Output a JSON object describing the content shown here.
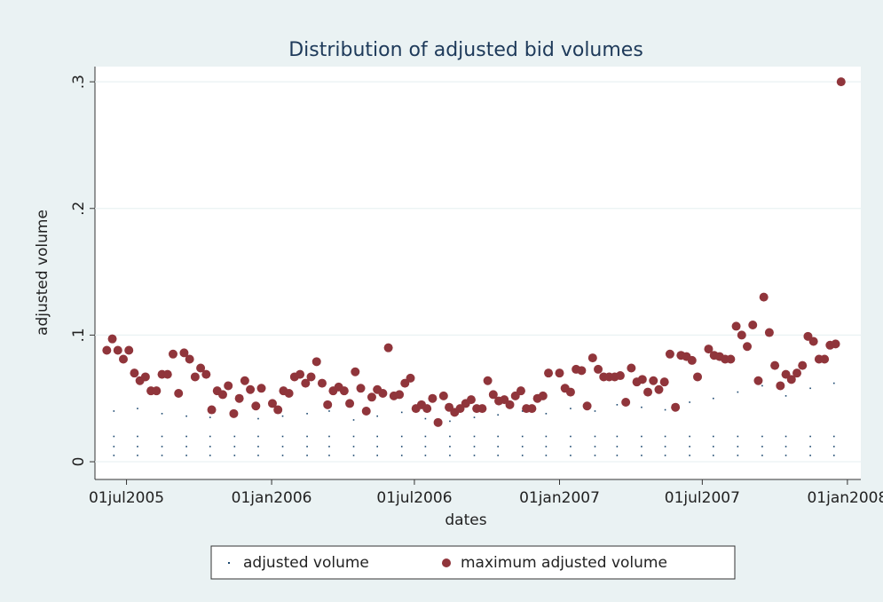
{
  "chart_data": {
    "type": "scatter",
    "title": "Distribution of adjusted bid volumes",
    "x_label": "dates",
    "y_label": "adjusted volume",
    "xlim": [
      "2005-05-22",
      "2008-01-18"
    ],
    "xticks": [
      {
        "value": "2005-07-01",
        "label": "01jul2005"
      },
      {
        "value": "2006-01-01",
        "label": "01jan2006"
      },
      {
        "value": "2006-07-01",
        "label": "01jul2006"
      },
      {
        "value": "2007-01-01",
        "label": "01jan2007"
      },
      {
        "value": "2007-07-01",
        "label": "01jul2007"
      },
      {
        "value": "2008-01-01",
        "label": "01jan2008"
      }
    ],
    "ylim": [
      -0.014,
      0.312
    ],
    "yticks": [
      0,
      {
        "value": 0.1,
        "label": ".1"
      },
      {
        "value": 0.2,
        "label": ".2"
      },
      {
        "value": 0.3,
        "label": ".3"
      }
    ],
    "grid": true,
    "legend": "bottom",
    "series": [
      {
        "name": "adjusted volume",
        "color": "#1a476f",
        "x": [
          "2005-06-15",
          "2005-06-15",
          "2005-06-15",
          "2005-06-15",
          "2005-07-15",
          "2005-07-15",
          "2005-07-15",
          "2005-07-15",
          "2005-08-15",
          "2005-08-15",
          "2005-08-15",
          "2005-08-15",
          "2005-09-15",
          "2005-09-15",
          "2005-09-15",
          "2005-09-15",
          "2005-10-15",
          "2005-10-15",
          "2005-10-15",
          "2005-10-15",
          "2005-11-15",
          "2005-11-15",
          "2005-11-15",
          "2005-11-15",
          "2005-12-15",
          "2005-12-15",
          "2005-12-15",
          "2005-12-15",
          "2006-01-15",
          "2006-01-15",
          "2006-01-15",
          "2006-01-15",
          "2006-02-15",
          "2006-02-15",
          "2006-02-15",
          "2006-02-15",
          "2006-03-15",
          "2006-03-15",
          "2006-03-15",
          "2006-03-15",
          "2006-04-15",
          "2006-04-15",
          "2006-04-15",
          "2006-04-15",
          "2006-05-15",
          "2006-05-15",
          "2006-05-15",
          "2006-05-15",
          "2006-06-15",
          "2006-06-15",
          "2006-06-15",
          "2006-06-15",
          "2006-07-15",
          "2006-07-15",
          "2006-07-15",
          "2006-07-15",
          "2006-08-15",
          "2006-08-15",
          "2006-08-15",
          "2006-08-15",
          "2006-09-15",
          "2006-09-15",
          "2006-09-15",
          "2006-09-15",
          "2006-10-15",
          "2006-10-15",
          "2006-10-15",
          "2006-10-15",
          "2006-11-15",
          "2006-11-15",
          "2006-11-15",
          "2006-11-15",
          "2006-12-15",
          "2006-12-15",
          "2006-12-15",
          "2006-12-15",
          "2007-01-15",
          "2007-01-15",
          "2007-01-15",
          "2007-01-15",
          "2007-02-15",
          "2007-02-15",
          "2007-02-15",
          "2007-02-15",
          "2007-03-15",
          "2007-03-15",
          "2007-03-15",
          "2007-03-15",
          "2007-04-15",
          "2007-04-15",
          "2007-04-15",
          "2007-04-15",
          "2007-05-15",
          "2007-05-15",
          "2007-05-15",
          "2007-05-15",
          "2007-06-15",
          "2007-06-15",
          "2007-06-15",
          "2007-06-15",
          "2007-07-15",
          "2007-07-15",
          "2007-07-15",
          "2007-07-15",
          "2007-08-15",
          "2007-08-15",
          "2007-08-15",
          "2007-08-15",
          "2007-09-15",
          "2007-09-15",
          "2007-09-15",
          "2007-09-15",
          "2007-10-15",
          "2007-10-15",
          "2007-10-15",
          "2007-10-15",
          "2007-11-15",
          "2007-11-15",
          "2007-11-15",
          "2007-11-15",
          "2007-12-15",
          "2007-12-15",
          "2007-12-15",
          "2007-12-15"
        ],
        "values": [
          0.005,
          0.012,
          0.02,
          0.04,
          0.005,
          0.012,
          0.02,
          0.042,
          0.005,
          0.012,
          0.02,
          0.038,
          0.005,
          0.012,
          0.02,
          0.036,
          0.005,
          0.012,
          0.02,
          0.035,
          0.005,
          0.012,
          0.02,
          0.037,
          0.005,
          0.012,
          0.02,
          0.034,
          0.005,
          0.012,
          0.02,
          0.036,
          0.005,
          0.012,
          0.02,
          0.038,
          0.005,
          0.012,
          0.02,
          0.04,
          0.005,
          0.012,
          0.02,
          0.033,
          0.005,
          0.012,
          0.02,
          0.036,
          0.005,
          0.012,
          0.02,
          0.039,
          0.005,
          0.012,
          0.02,
          0.034,
          0.005,
          0.012,
          0.02,
          0.032,
          0.005,
          0.012,
          0.02,
          0.035,
          0.005,
          0.012,
          0.02,
          0.037,
          0.005,
          0.012,
          0.02,
          0.04,
          0.005,
          0.012,
          0.02,
          0.038,
          0.005,
          0.012,
          0.02,
          0.042,
          0.005,
          0.012,
          0.02,
          0.04,
          0.005,
          0.012,
          0.02,
          0.045,
          0.005,
          0.012,
          0.02,
          0.043,
          0.005,
          0.012,
          0.02,
          0.041,
          0.005,
          0.012,
          0.02,
          0.047,
          0.005,
          0.012,
          0.02,
          0.05,
          0.005,
          0.012,
          0.02,
          0.055,
          0.005,
          0.012,
          0.02,
          0.06,
          0.005,
          0.012,
          0.02,
          0.052,
          0.005,
          0.012,
          0.02,
          0.058,
          0.005,
          0.012,
          0.02,
          0.062
        ]
      },
      {
        "name": "maximum adjusted volume",
        "color": "#90353b",
        "x": [
          "2005-06-06",
          "2005-06-13",
          "2005-06-20",
          "2005-06-27",
          "2005-07-04",
          "2005-07-11",
          "2005-07-18",
          "2005-07-25",
          "2005-08-01",
          "2005-08-08",
          "2005-08-15",
          "2005-08-22",
          "2005-08-29",
          "2005-09-05",
          "2005-09-12",
          "2005-09-19",
          "2005-09-26",
          "2005-10-03",
          "2005-10-10",
          "2005-10-17",
          "2005-10-24",
          "2005-10-31",
          "2005-11-07",
          "2005-11-14",
          "2005-11-21",
          "2005-11-28",
          "2005-12-05",
          "2005-12-12",
          "2005-12-19",
          "2006-01-02",
          "2006-01-09",
          "2006-01-16",
          "2006-01-23",
          "2006-01-30",
          "2006-02-06",
          "2006-02-13",
          "2006-02-20",
          "2006-02-27",
          "2006-03-06",
          "2006-03-13",
          "2006-03-20",
          "2006-03-27",
          "2006-04-03",
          "2006-04-10",
          "2006-04-17",
          "2006-04-24",
          "2006-05-01",
          "2006-05-08",
          "2006-05-15",
          "2006-05-22",
          "2006-05-29",
          "2006-06-05",
          "2006-06-12",
          "2006-06-19",
          "2006-06-26",
          "2006-07-03",
          "2006-07-10",
          "2006-07-17",
          "2006-07-24",
          "2006-07-31",
          "2006-08-07",
          "2006-08-14",
          "2006-08-21",
          "2006-08-28",
          "2006-09-04",
          "2006-09-11",
          "2006-09-18",
          "2006-09-25",
          "2006-10-02",
          "2006-10-09",
          "2006-10-16",
          "2006-10-23",
          "2006-10-30",
          "2006-11-06",
          "2006-11-13",
          "2006-11-20",
          "2006-11-27",
          "2006-12-04",
          "2006-12-11",
          "2006-12-18",
          "2007-01-01",
          "2007-01-08",
          "2007-01-15",
          "2007-01-22",
          "2007-01-29",
          "2007-02-05",
          "2007-02-12",
          "2007-02-19",
          "2007-02-26",
          "2007-03-05",
          "2007-03-12",
          "2007-03-19",
          "2007-03-26",
          "2007-04-02",
          "2007-04-09",
          "2007-04-16",
          "2007-04-23",
          "2007-04-30",
          "2007-05-07",
          "2007-05-14",
          "2007-05-21",
          "2007-05-28",
          "2007-06-04",
          "2007-06-11",
          "2007-06-18",
          "2007-06-25",
          "2007-07-09",
          "2007-07-16",
          "2007-07-23",
          "2007-07-30",
          "2007-08-06",
          "2007-08-13",
          "2007-08-20",
          "2007-08-27",
          "2007-09-03",
          "2007-09-10",
          "2007-09-17",
          "2007-09-24",
          "2007-10-01",
          "2007-10-08",
          "2007-10-15",
          "2007-10-22",
          "2007-10-29",
          "2007-11-05",
          "2007-11-12",
          "2007-11-19",
          "2007-11-26",
          "2007-12-03",
          "2007-12-10",
          "2007-12-17",
          "2007-12-24"
        ],
        "values": [
          0.088,
          0.097,
          0.088,
          0.081,
          0.088,
          0.07,
          0.064,
          0.067,
          0.056,
          0.056,
          0.069,
          0.069,
          0.085,
          0.054,
          0.086,
          0.081,
          0.067,
          0.074,
          0.069,
          0.041,
          0.056,
          0.053,
          0.06,
          0.038,
          0.05,
          0.064,
          0.057,
          0.044,
          0.058,
          0.046,
          0.041,
          0.056,
          0.054,
          0.067,
          0.069,
          0.062,
          0.067,
          0.079,
          0.062,
          0.045,
          0.056,
          0.059,
          0.056,
          0.046,
          0.071,
          0.058,
          0.04,
          0.051,
          0.057,
          0.054,
          0.09,
          0.052,
          0.053,
          0.062,
          0.066,
          0.042,
          0.045,
          0.042,
          0.05,
          0.031,
          0.052,
          0.043,
          0.039,
          0.042,
          0.046,
          0.049,
          0.042,
          0.042,
          0.064,
          0.053,
          0.048,
          0.049,
          0.045,
          0.052,
          0.056,
          0.042,
          0.042,
          0.05,
          0.052,
          0.07,
          0.07,
          0.058,
          0.055,
          0.073,
          0.072,
          0.044,
          0.082,
          0.073,
          0.067,
          0.067,
          0.067,
          0.068,
          0.047,
          0.074,
          0.063,
          0.065,
          0.055,
          0.064,
          0.057,
          0.063,
          0.085,
          0.043,
          0.084,
          0.083,
          0.08,
          0.067,
          0.089,
          0.084,
          0.083,
          0.081,
          0.081,
          0.107,
          0.1,
          0.091,
          0.108,
          0.064,
          0.13,
          0.102,
          0.076,
          0.06,
          0.069,
          0.065,
          0.07,
          0.076,
          0.099,
          0.095,
          0.081,
          0.081,
          0.092,
          0.093,
          0.3
        ]
      }
    ]
  }
}
